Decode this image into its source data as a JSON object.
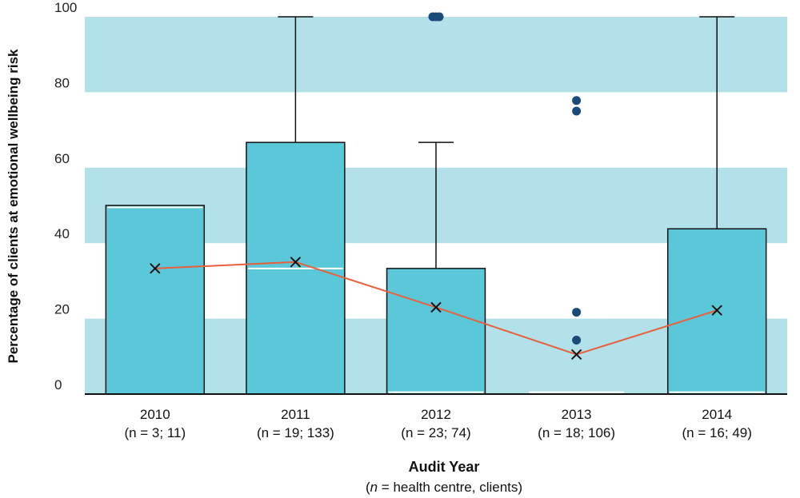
{
  "chart_data": {
    "type": "box",
    "xlabel": "Audit Year",
    "xlabel_note": "(n = health centre, clients)",
    "ylabel": "Percentage of clients at emotional wellbeing risk",
    "ylim": [
      0,
      100
    ],
    "yticks": [
      0,
      20,
      40,
      60,
      80,
      100
    ],
    "grid": "alternating horizontal bands",
    "colors": {
      "band": "#b2e1e9",
      "box": "#5bc8da",
      "mean_line": "#e8603c",
      "outlier": "#1a4a7a"
    },
    "categories": [
      {
        "year": "2010",
        "n_label": "(n = 3; 11)",
        "q1": 0,
        "median": 49.5,
        "q3": 50,
        "whisker_low": 0,
        "whisker_high": 50,
        "mean": 33.3,
        "outliers": []
      },
      {
        "year": "2011",
        "n_label": "(n = 19; 133)",
        "q1": 0,
        "median": 33.3,
        "q3": 66.7,
        "whisker_low": 0,
        "whisker_high": 100,
        "mean": 35,
        "outliers": []
      },
      {
        "year": "2012",
        "n_label": "(n = 23; 74)",
        "q1": 0,
        "median": 0.5,
        "q3": 33.3,
        "whisker_low": 0,
        "whisker_high": 66.7,
        "mean": 23,
        "outliers": [
          100,
          100,
          100
        ]
      },
      {
        "year": "2013",
        "n_label": "(n = 18; 106)",
        "q1": 0,
        "median": 0.5,
        "q3": 0.5,
        "whisker_low": 0,
        "whisker_high": 0.5,
        "mean": 10.5,
        "outliers": [
          14.3,
          21.7,
          75,
          77.8
        ]
      },
      {
        "year": "2014",
        "n_label": "(n = 16; 49)",
        "q1": 0,
        "median": 0.5,
        "q3": 43.8,
        "whisker_low": 0,
        "whisker_high": 100,
        "mean": 22.2,
        "outliers": []
      }
    ]
  }
}
